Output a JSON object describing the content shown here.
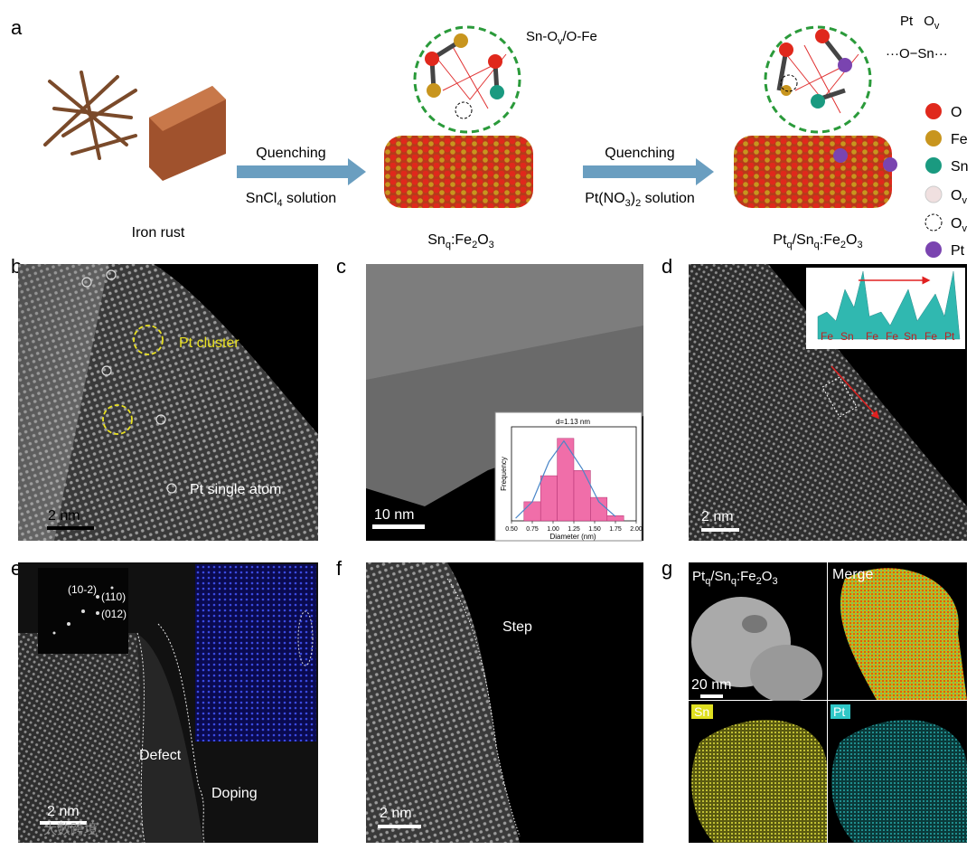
{
  "panel_labels": [
    "a",
    "b",
    "c",
    "d",
    "e",
    "f",
    "g"
  ],
  "panel_a": {
    "iron_rust": "Iron rust",
    "step1": {
      "top": "Quenching",
      "bottom": [
        "SnCl",
        "4",
        " solution"
      ]
    },
    "product1": [
      "Sn",
      "q",
      ":Fe",
      "2",
      "O",
      "3"
    ],
    "step2": {
      "top": "Quenching",
      "bottom": [
        "Pt(NO",
        "3",
        ")",
        "2",
        " solution"
      ]
    },
    "product2": [
      "Pt",
      "q",
      "/Sn",
      "q",
      ":Fe",
      "2",
      "O",
      "3"
    ],
    "site1": [
      "Sn-O",
      "v",
      "/O-Fe"
    ],
    "site2": {
      "line1": [
        "Pt",
        "O",
        "v"
      ],
      "line2": "···O−Sn···"
    },
    "legend": [
      [
        "O"
      ],
      [
        "Fe"
      ],
      [
        "Sn"
      ],
      [
        "O",
        "v"
      ],
      [
        "O",
        "v"
      ],
      [
        "Pt"
      ]
    ]
  },
  "panel_b": {
    "labels": [
      "Pt cluster",
      "Pt single atom"
    ],
    "scale_bar": "2 nm"
  },
  "panel_c": {
    "scale_bar": "10 nm"
  },
  "chart_data": {
    "type": "histogram",
    "title": "d=1.13 nm",
    "x_label": "Diameter (nm)",
    "y_label": "Frequency",
    "bins": [
      0.65,
      0.85,
      1.05,
      1.25,
      1.45,
      1.65,
      1.85
    ],
    "counts": [
      22,
      52,
      95,
      58,
      27,
      6
    ],
    "color": "#f06ea9",
    "fit": {
      "x": [
        0.55,
        0.75,
        0.95,
        1.13,
        1.35,
        1.55,
        1.75
      ],
      "y": [
        3,
        22,
        68,
        92,
        60,
        22,
        5
      ],
      "color": "#4a86c8"
    },
    "xlim": [
      0.5,
      2.0
    ],
    "xticks": [
      {
        "value": 0.5,
        "label": "0.50"
      },
      {
        "value": 0.75,
        "label": "0.75"
      },
      {
        "value": 1,
        "label": "1.00"
      },
      {
        "value": 1.25,
        "label": "1.25"
      },
      {
        "value": 1.5,
        "label": "1.50"
      },
      {
        "value": 1.75,
        "label": "1.75"
      },
      {
        "value": 2,
        "label": "2.00"
      }
    ],
    "ylim": [
      0,
      100
    ]
  },
  "panel_d": {
    "scale_bar": "2 nm",
    "profile_labels": [
      "Fe",
      "Sn",
      "Fe",
      "Fe",
      "Sn",
      "Fe",
      "Pt"
    ]
  },
  "panel_e": {
    "spots": [
      "(10-2)",
      "(110)",
      "(012)"
    ],
    "labels": [
      "Defect",
      "Doping"
    ],
    "scale_bar": "2 nm"
  },
  "panel_f": {
    "label": "Step",
    "scale_bar": "2 nm"
  },
  "panel_g": {
    "title": [
      "Pt",
      "q",
      "/Sn",
      "q",
      ":Fe",
      "2",
      "O",
      "3"
    ],
    "merge": "Merge",
    "scale_bar": "20 nm",
    "sn": "Sn",
    "pt": "Pt"
  },
  "watermark": "大数跨境"
}
